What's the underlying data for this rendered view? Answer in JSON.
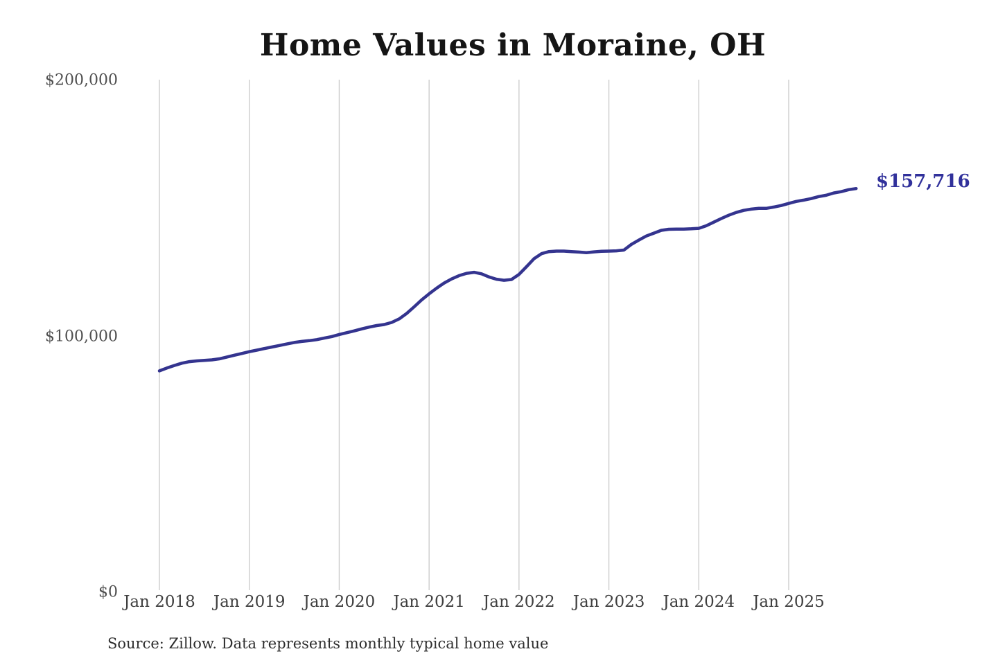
{
  "title": "Home Values in Moraine, OH",
  "source_note": "Source: Zillow. Data represents monthly typical home value",
  "colors": {
    "line": "#34348f",
    "end_label": "#31319b",
    "grid": "#c9c9c9",
    "title_text": "#151515",
    "axis_text": "#4f4f4f",
    "source_text": "#2e2e2e",
    "background": "#ffffff"
  },
  "chart_data": {
    "type": "line",
    "title": "Home Values in Moraine, OH",
    "xlabel": "",
    "ylabel": "",
    "ylim": [
      0,
      200000
    ],
    "grid": "vertical-only",
    "legend": "none",
    "y_tick_labels": [
      "$0",
      "$100,000",
      "$200,000"
    ],
    "y_tick_values": [
      0,
      100000,
      200000
    ],
    "x_tick_labels": [
      "Jan 2018",
      "Jan 2019",
      "Jan 2020",
      "Jan 2021",
      "Jan 2022",
      "Jan 2023",
      "Jan 2024",
      "Jan 2025"
    ],
    "x_tick_month_indices": [
      0,
      12,
      24,
      36,
      48,
      60,
      72,
      84
    ],
    "final_value": 157716,
    "final_value_label": "$157,716",
    "series": [
      {
        "name": "Monthly typical home value",
        "start_month": "2018-01",
        "end_month": "2025-10",
        "values": [
          86500,
          87600,
          88600,
          89500,
          90100,
          90400,
          90600,
          90800,
          91200,
          91900,
          92600,
          93300,
          94000,
          94600,
          95200,
          95800,
          96400,
          97000,
          97600,
          98000,
          98300,
          98700,
          99300,
          99900,
          100700,
          101400,
          102100,
          102900,
          103600,
          104200,
          104600,
          105400,
          106800,
          108900,
          111500,
          114200,
          116600,
          118800,
          120800,
          122400,
          123700,
          124600,
          125000,
          124400,
          123200,
          122300,
          121900,
          122200,
          124200,
          127200,
          130300,
          132300,
          133100,
          133300,
          133300,
          133100,
          132900,
          132700,
          133000,
          133200,
          133300,
          133400,
          133700,
          135900,
          137600,
          139200,
          140300,
          141400,
          141800,
          141900,
          141900,
          142000,
          142200,
          143200,
          144600,
          146000,
          147300,
          148400,
          149200,
          149700,
          150000,
          150000,
          150500,
          151100,
          151900,
          152700,
          153200,
          153800,
          154600,
          155100,
          156000,
          156500,
          157300,
          157716
        ]
      }
    ]
  }
}
